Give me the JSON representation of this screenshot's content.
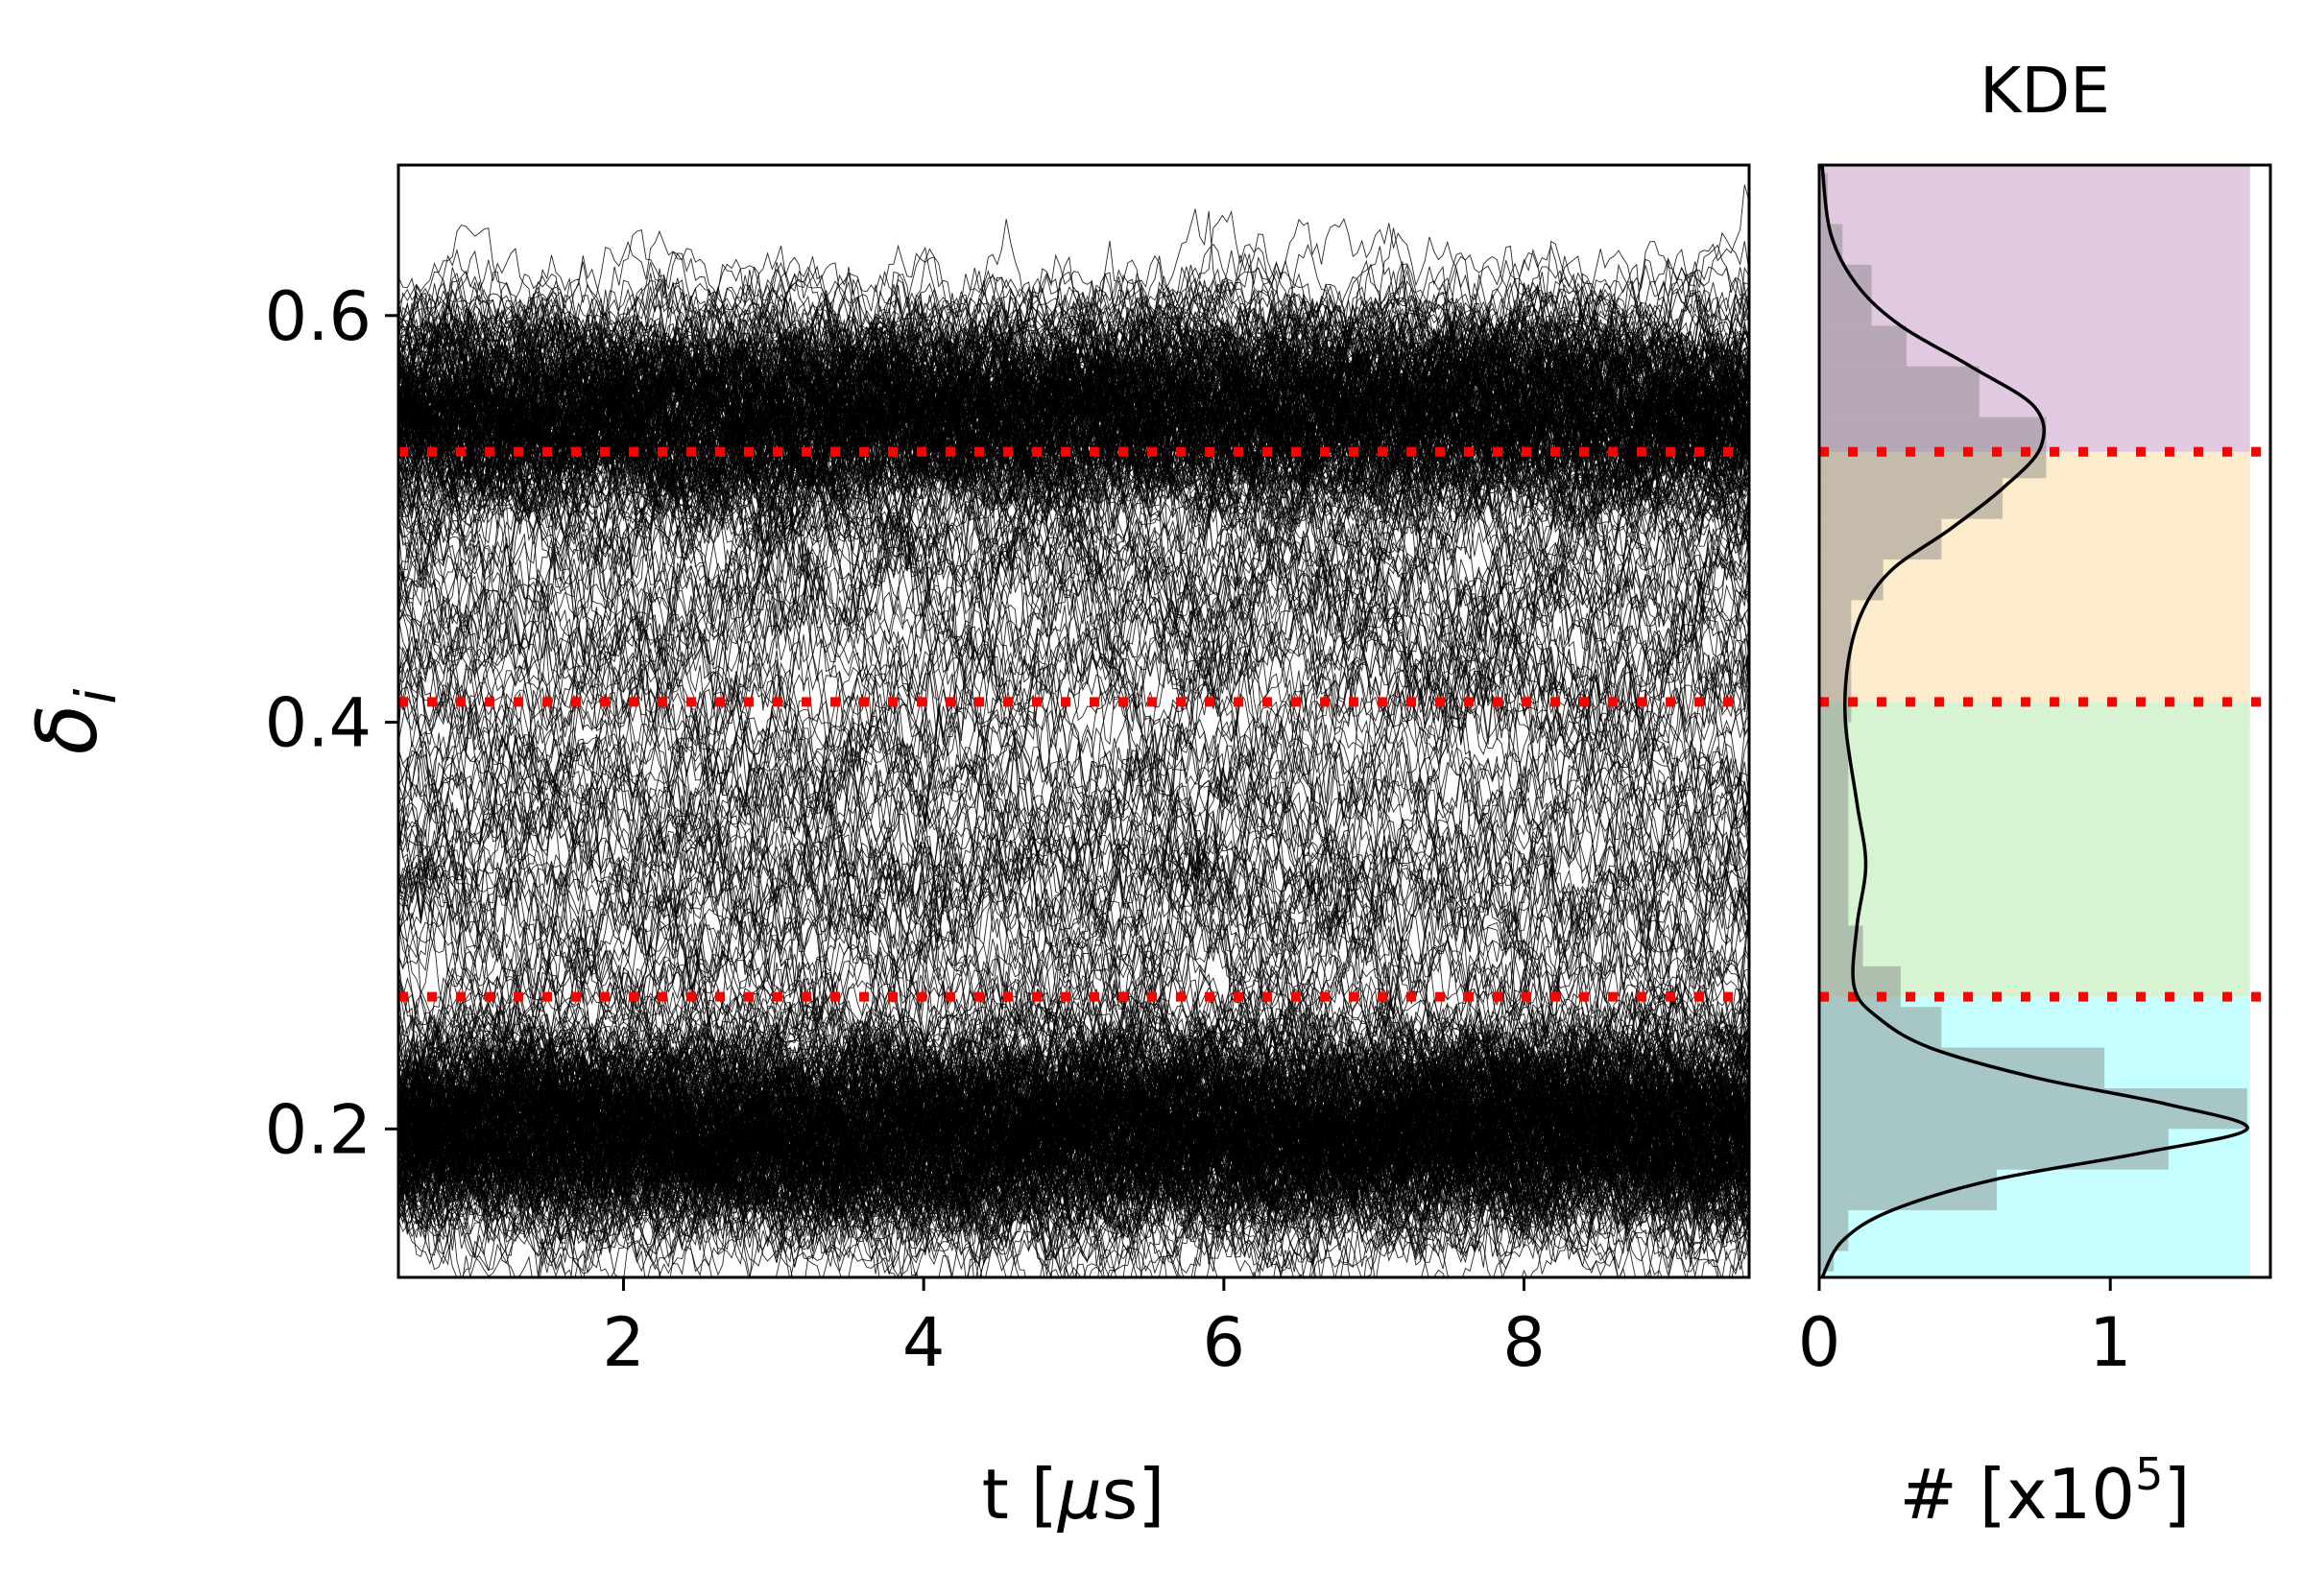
{
  "chart_data": [
    {
      "type": "line",
      "panel": "trajectories",
      "title": "",
      "xlabel": "t [μs]",
      "xlabel_parts": {
        "pre": "t [",
        "mu": "μ",
        "post": "s]"
      },
      "ylabel": "δi",
      "ylabel_parts": {
        "sym": "δ",
        "sub": "i"
      },
      "xlim": [
        0.5,
        9.5
      ],
      "ylim": [
        0.127,
        0.674
      ],
      "xticks": [
        2,
        4,
        6,
        8
      ],
      "xtick_labels": [
        "2",
        "4",
        "6",
        "8"
      ],
      "yticks": [
        0.2,
        0.4,
        0.6
      ],
      "ytick_labels": [
        "0.2",
        "0.4",
        "0.6"
      ],
      "grid": false,
      "line_color": "#000000",
      "threshold_color": "#ff0000",
      "thresholds": [
        0.265,
        0.41,
        0.533
      ],
      "population_centers": [
        0.2,
        0.555
      ],
      "series_note_count": 600
    },
    {
      "type": "bar",
      "panel": "kde",
      "orientation": "horizontal",
      "title": "KDE",
      "xlabel": "# [x10⁵]",
      "xlabel_parts": {
        "pre": "# [x10",
        "sup": "5",
        "post": "]"
      },
      "xlim": [
        0,
        1.55
      ],
      "ylim": [
        0.127,
        0.674
      ],
      "xticks": [
        0,
        1
      ],
      "xtick_labels": [
        "0",
        "1"
      ],
      "bins": [
        {
          "y0": 0.13,
          "y1": 0.14,
          "value": 0.05
        },
        {
          "y0": 0.14,
          "y1": 0.16,
          "value": 0.1
        },
        {
          "y0": 0.16,
          "y1": 0.18,
          "value": 0.61
        },
        {
          "y0": 0.18,
          "y1": 0.2,
          "value": 1.2
        },
        {
          "y0": 0.2,
          "y1": 0.22,
          "value": 1.47
        },
        {
          "y0": 0.22,
          "y1": 0.24,
          "value": 0.98
        },
        {
          "y0": 0.24,
          "y1": 0.26,
          "value": 0.42
        },
        {
          "y0": 0.26,
          "y1": 0.28,
          "value": 0.28
        },
        {
          "y0": 0.28,
          "y1": 0.3,
          "value": 0.15
        },
        {
          "y0": 0.3,
          "y1": 0.4,
          "value": 0.1
        },
        {
          "y0": 0.4,
          "y1": 0.46,
          "value": 0.11
        },
        {
          "y0": 0.46,
          "y1": 0.48,
          "value": 0.22
        },
        {
          "y0": 0.48,
          "y1": 0.5,
          "value": 0.42
        },
        {
          "y0": 0.5,
          "y1": 0.52,
          "value": 0.63
        },
        {
          "y0": 0.52,
          "y1": 0.55,
          "value": 0.78
        },
        {
          "y0": 0.55,
          "y1": 0.575,
          "value": 0.55
        },
        {
          "y0": 0.575,
          "y1": 0.595,
          "value": 0.3
        },
        {
          "y0": 0.595,
          "y1": 0.625,
          "value": 0.18
        },
        {
          "y0": 0.625,
          "y1": 0.645,
          "value": 0.08
        },
        {
          "y0": 0.645,
          "y1": 0.67,
          "value": 0.03
        }
      ],
      "kde_curve": [
        {
          "y": 0.127,
          "x": 0.01
        },
        {
          "y": 0.145,
          "x": 0.08
        },
        {
          "y": 0.16,
          "x": 0.25
        },
        {
          "y": 0.175,
          "x": 0.6
        },
        {
          "y": 0.188,
          "x": 1.1
        },
        {
          "y": 0.2,
          "x": 1.47
        },
        {
          "y": 0.212,
          "x": 1.2
        },
        {
          "y": 0.225,
          "x": 0.75
        },
        {
          "y": 0.24,
          "x": 0.38
        },
        {
          "y": 0.255,
          "x": 0.2
        },
        {
          "y": 0.27,
          "x": 0.12
        },
        {
          "y": 0.3,
          "x": 0.13
        },
        {
          "y": 0.33,
          "x": 0.16
        },
        {
          "y": 0.36,
          "x": 0.13
        },
        {
          "y": 0.4,
          "x": 0.09
        },
        {
          "y": 0.43,
          "x": 0.1
        },
        {
          "y": 0.455,
          "x": 0.15
        },
        {
          "y": 0.475,
          "x": 0.25
        },
        {
          "y": 0.495,
          "x": 0.45
        },
        {
          "y": 0.515,
          "x": 0.63
        },
        {
          "y": 0.535,
          "x": 0.76
        },
        {
          "y": 0.555,
          "x": 0.74
        },
        {
          "y": 0.575,
          "x": 0.52
        },
        {
          "y": 0.595,
          "x": 0.28
        },
        {
          "y": 0.615,
          "x": 0.13
        },
        {
          "y": 0.64,
          "x": 0.04
        },
        {
          "y": 0.674,
          "x": 0.01
        }
      ],
      "bar_color": "#808080",
      "regions": [
        {
          "y0": 0.127,
          "y1": 0.265,
          "color": "#c6ffff"
        },
        {
          "y0": 0.265,
          "y1": 0.41,
          "color": "#d6f3d2"
        },
        {
          "y0": 0.41,
          "y1": 0.533,
          "color": "#fdeccc"
        },
        {
          "y0": 0.533,
          "y1": 0.674,
          "color": "#e2c9e2"
        }
      ],
      "thresholds": [
        0.265,
        0.41,
        0.533
      ],
      "threshold_color": "#ff0000"
    }
  ]
}
